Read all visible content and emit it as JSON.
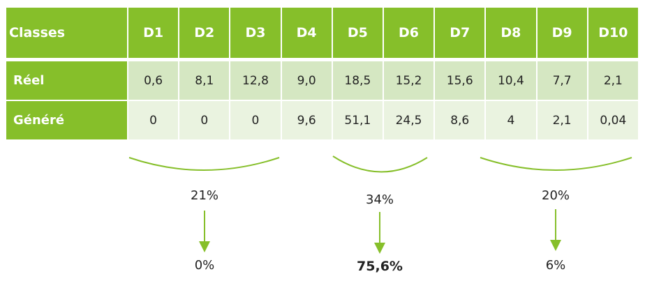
{
  "table": {
    "header": [
      "Classes",
      "D1",
      "D2",
      "D3",
      "D4",
      "D5",
      "D6",
      "D7",
      "D8",
      "D9",
      "D10"
    ],
    "rows": [
      {
        "label": "Réel",
        "values": [
          "0,6",
          "8,1",
          "12,8",
          "9,0",
          "18,5",
          "15,2",
          "15,6",
          "10,4",
          "7,7",
          "2,1"
        ]
      },
      {
        "label": "Généré",
        "values": [
          "0",
          "0",
          "0",
          "9,6",
          "51,1",
          "24,5",
          "8,6",
          "4",
          "2,1",
          "0,04"
        ]
      }
    ]
  },
  "groups": [
    {
      "top": "21%",
      "bottom": "0%"
    },
    {
      "top": "34%",
      "bottom": "75,6%"
    },
    {
      "top": "20%",
      "bottom": "6%"
    }
  ],
  "colors": {
    "accent": "#86bf2a",
    "row1": "#d5e7c2",
    "row2": "#eaf3e0"
  }
}
